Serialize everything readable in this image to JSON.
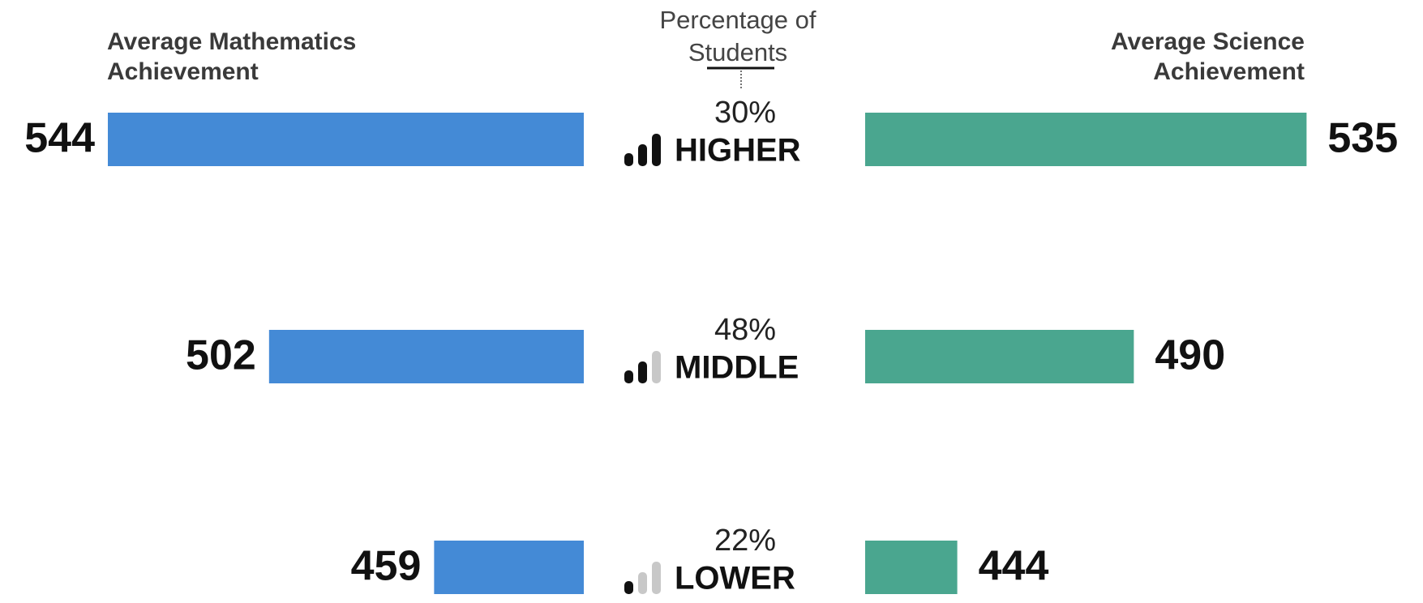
{
  "chart_data": {
    "type": "bar",
    "categories": [
      "HIGHER",
      "MIDDLE",
      "LOWER"
    ],
    "series": [
      {
        "name": "Average Mathematics Achievement",
        "color": "#448ad6",
        "values": [
          544,
          502,
          459
        ]
      },
      {
        "name": "Average Science Achievement",
        "color": "#4aa68f",
        "values": [
          535,
          490,
          444
        ]
      }
    ],
    "share": {
      "title": "Percentage of Students",
      "values": [
        30,
        48,
        22
      ],
      "value_labels": [
        "30%",
        "48%",
        "22%"
      ]
    },
    "xlim": [
      420,
      544
    ]
  }
}
